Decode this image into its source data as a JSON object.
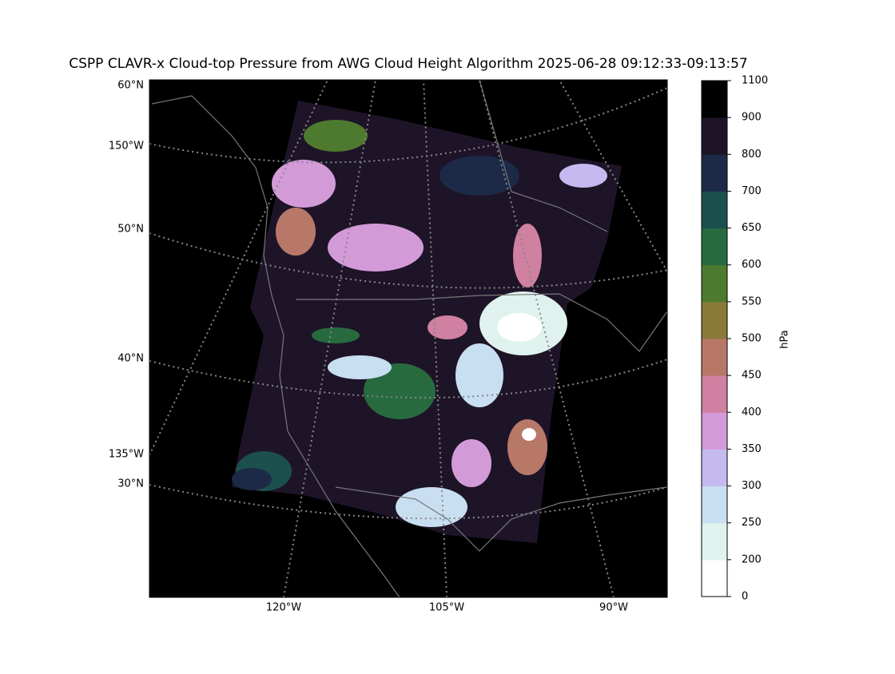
{
  "title": "CSPP CLAVR-x Cloud-top Pressure from AWG Cloud Height Algorithm 2025-06-28 09:12:33-09:13:57",
  "map": {
    "left_labels": [
      "60°N",
      "150°W",
      "50°N",
      "40°N",
      "135°W",
      "30°N"
    ],
    "bottom_labels": [
      "120°W",
      "105°W",
      "90°W"
    ]
  },
  "colorbar": {
    "label": "hPa",
    "ticks": [
      0,
      200,
      250,
      300,
      350,
      400,
      450,
      500,
      550,
      600,
      650,
      700,
      800,
      900,
      1100
    ],
    "colors": [
      "#ffffff",
      "#dff2ee",
      "#c8dff2",
      "#c4baf0",
      "#d39ad8",
      "#d080a0",
      "#b87868",
      "#8a7a3a",
      "#4e7a30",
      "#276a3e",
      "#1c504c",
      "#1c2a48",
      "#1e1428",
      "#000000"
    ]
  }
}
